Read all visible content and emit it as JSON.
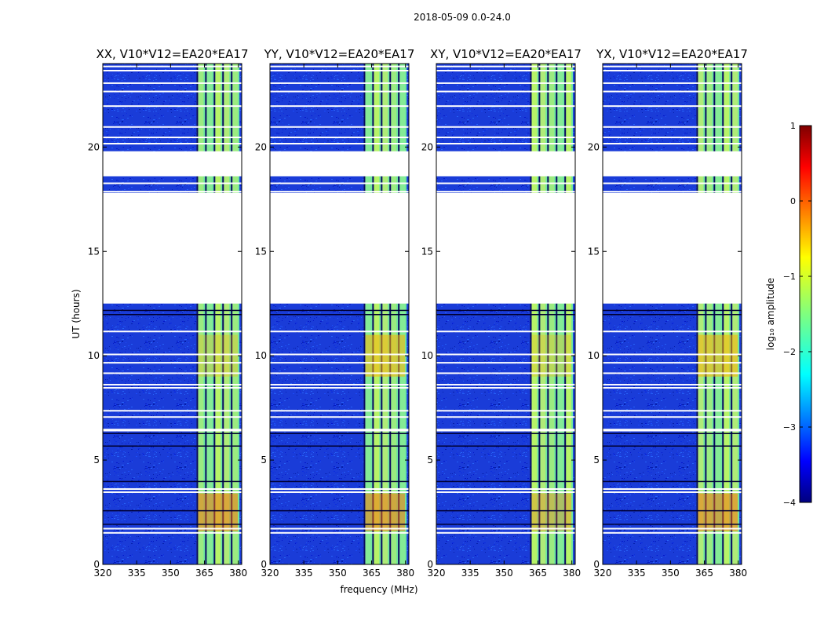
{
  "suptitle": "2018-05-09 0.0-24.0",
  "chart_data": {
    "type": "heatmap",
    "title": "2018-05-09 0.0-24.0",
    "xlabel": "frequency (MHz)",
    "ylabel": "UT (hours)",
    "xlim": [
      320,
      381.5
    ],
    "ylim": [
      0,
      24
    ],
    "xticks": [
      320,
      335,
      350,
      365,
      380
    ],
    "yticks": [
      0,
      5,
      10,
      15,
      20
    ],
    "panels": [
      {
        "title": "XX, V10*V12=EA20*EA17"
      },
      {
        "title": "YY, V10*V12=EA20*EA17"
      },
      {
        "title": "XY, V10*V12=EA20*EA17"
      },
      {
        "title": "YX, V10*V12=EA20*EA17"
      }
    ],
    "data_gaps_hours": [
      [
        12.5,
        17.8
      ],
      [
        18.6,
        19.8
      ]
    ],
    "colorbar": {
      "label": "log₁₀ amplitude",
      "range": [
        -4,
        1
      ],
      "ticks": [
        "1",
        "0",
        "−1",
        "−2",
        "−3",
        "−4"
      ],
      "colormap": "jet",
      "colors": [
        "#00007f",
        "#0000ff",
        "#007fff",
        "#00ffff",
        "#7fff7f",
        "#ffff00",
        "#ff7f00",
        "#ff0000",
        "#7f0000"
      ]
    },
    "background_color": "#1a3cd8",
    "band_color": "#6ee6a0"
  }
}
